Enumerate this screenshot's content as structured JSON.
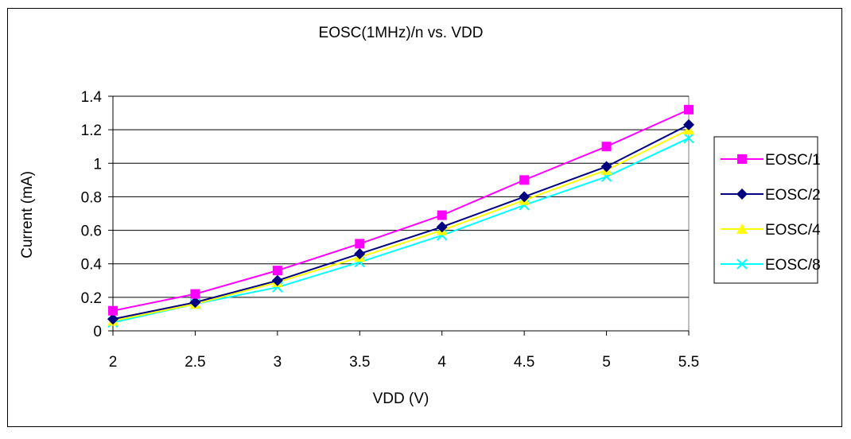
{
  "chart_data": {
    "type": "line",
    "title": "EOSC(1MHz)/n vs. VDD",
    "xlabel": "VDD (V)",
    "ylabel": "Current (mA)",
    "x": [
      2,
      2.5,
      3,
      3.5,
      4,
      4.5,
      5,
      5.5
    ],
    "x_tick_labels": [
      "2",
      "2.5",
      "3",
      "3.5",
      "4",
      "4.5",
      "5",
      "5.5"
    ],
    "y_tick_labels": [
      "0",
      "0.2",
      "0.4",
      "0.6",
      "0.8",
      "1",
      "1.2",
      "1.4"
    ],
    "ylim": [
      0,
      1.4
    ],
    "grid": "horizontal",
    "legend_position": "right",
    "series": [
      {
        "name": "EOSC/1",
        "color": "#ff00ff",
        "marker": "square",
        "values": [
          0.12,
          0.22,
          0.36,
          0.52,
          0.69,
          0.9,
          1.1,
          1.32
        ]
      },
      {
        "name": "EOSC/2",
        "color": "#000080",
        "marker": "diamond",
        "values": [
          0.07,
          0.17,
          0.3,
          0.46,
          0.62,
          0.8,
          0.98,
          1.23
        ]
      },
      {
        "name": "EOSC/4",
        "color": "#ffff00",
        "marker": "triangle",
        "values": [
          0.06,
          0.16,
          0.29,
          0.44,
          0.6,
          0.78,
          0.96,
          1.2
        ]
      },
      {
        "name": "EOSC/8",
        "color": "#00ffff",
        "marker": "x",
        "values": [
          0.05,
          0.16,
          0.26,
          0.41,
          0.57,
          0.75,
          0.92,
          1.15
        ]
      }
    ]
  }
}
